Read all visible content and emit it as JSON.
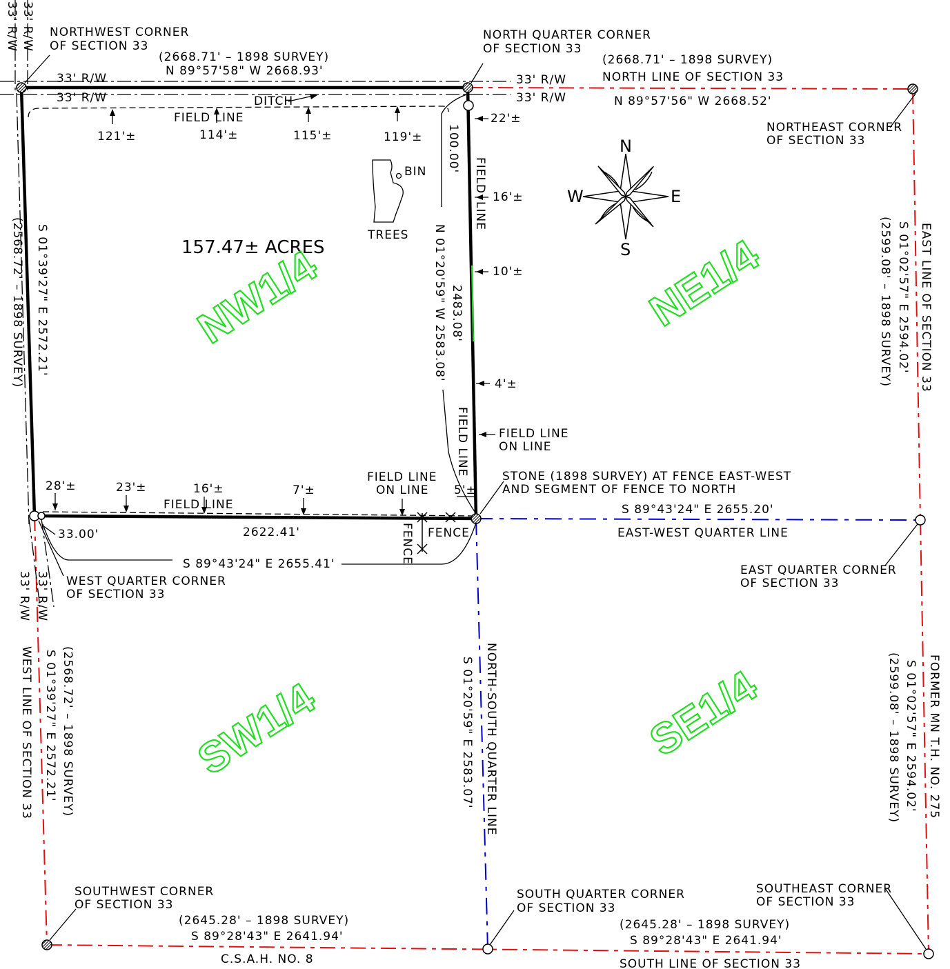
{
  "corners": {
    "northwest": [
      "NORTHWEST CORNER",
      "OF SECTION 33"
    ],
    "north_quarter": [
      "NORTH QUARTER CORNER",
      "OF SECTION 33"
    ],
    "northeast": [
      "NORTHEAST CORNER",
      "OF SECTION 33"
    ],
    "west_quarter": [
      "WEST QUARTER CORNER",
      "OF SECTION 33"
    ],
    "east_quarter": [
      "EAST QUARTER CORNER",
      "OF SECTION 33"
    ],
    "southwest": [
      "SOUTHWEST CORNER",
      "OF SECTION 33"
    ],
    "south_quarter": [
      "SOUTH QUARTER CORNER",
      "OF SECTION 33"
    ],
    "southeast": [
      "SOUTHEAST CORNER",
      "OF SECTION 33"
    ],
    "stone": [
      "STONE (1898 SURVEY) AT FENCE EAST-WEST",
      "AND SEGMENT OF FENCE TO NORTH"
    ]
  },
  "north_side": {
    "nw_survey": "(2668.71' – 1898 SURVEY)",
    "nw_bearing": "N 89°57'58\" W  2668.93'",
    "ne_survey": "(2668.71' – 1898 SURVEY)",
    "ne_title": "NORTH LINE OF SECTION 33",
    "ne_bearing": "N 89°57'56\" W  2668.52'"
  },
  "row": "33' R/W",
  "ditch": "DITCH",
  "field_line": "FIELD LINE",
  "field_word": "FIELD",
  "line_word": "LINE",
  "field_line_on_line": [
    "FIELD LINE",
    "ON LINE"
  ],
  "north_offsets": [
    "121'±",
    "114'±",
    "115'±",
    "119'±"
  ],
  "east_offsets": [
    "22'±",
    "16'±",
    "10'±",
    "4'±",
    "5'±"
  ],
  "south_offsets": [
    "28'±",
    "23'±",
    "16'±",
    "7'±"
  ],
  "bin": "BIN",
  "trees": "TREES",
  "acres": "157.47±  ACRES",
  "quarters": {
    "nw": "NW1/4",
    "ne": "NE1/4",
    "sw": "SW1/4",
    "se": "SE1/4"
  },
  "compass": {
    "n": "N",
    "s": "S",
    "e": "E",
    "w": "W"
  },
  "tract": {
    "west_bearing": "S 01°39'27\" E   2572.21'",
    "west_survey": "(2568.72' – 1898 SURVEY)",
    "east_bearing": "N 01°20'59\" W   2583.08'",
    "east_dist": "2483.08'",
    "dist_100": "100.00'",
    "south_dist": "2622.41'",
    "dist_33": "33.00'",
    "south_bearing": "S 89°43'24\" E   2655.41'",
    "fence": "FENCE"
  },
  "ew_quarter": {
    "bearing": "S 89°43'24\"  E   2655.20'",
    "title": "EAST-WEST QUARTER LINE"
  },
  "ns_quarter": {
    "title": "NORTH-SOUTH QUARTER LINE",
    "bearing": "S 01°20'59\" E   2583.07'"
  },
  "east_line": {
    "title": "EAST LINE OF SECTION 33",
    "bearing": "S 01°02'57\" E    2594.02'",
    "survey": "(2599.08' –  1898 SURVEY)"
  },
  "former_th": {
    "title": "FORMER MN T.H. NO. 275",
    "bearing": "S 01°02'57\" E   2594.02'",
    "survey": "(2599.08' – 1898 SURVEY)"
  },
  "west_line": {
    "title": "WEST LINE OF SECTION 33",
    "bearing": "S 01°39'27\" E   2572.21'",
    "survey": "(2568.72' – 1898 SURVEY)"
  },
  "south_side": {
    "sw_survey": "(2645.28' – 1898 SURVEY)",
    "sw_bearing": "S 89°28'43\" E  2641.94'",
    "csah": "C.S.A.H. NO. 8",
    "se_survey": "(2645.28' – 1898 SURVEY)",
    "se_bearing": "S 89°28'43\" E  2641.94'",
    "se_title": "SOUTH LINE OF SECTION 33"
  },
  "colors": {
    "section_line": "#e01010",
    "quarter_line": "#0000cc",
    "quarter_label": "#22dd22",
    "tract": "#000000"
  }
}
